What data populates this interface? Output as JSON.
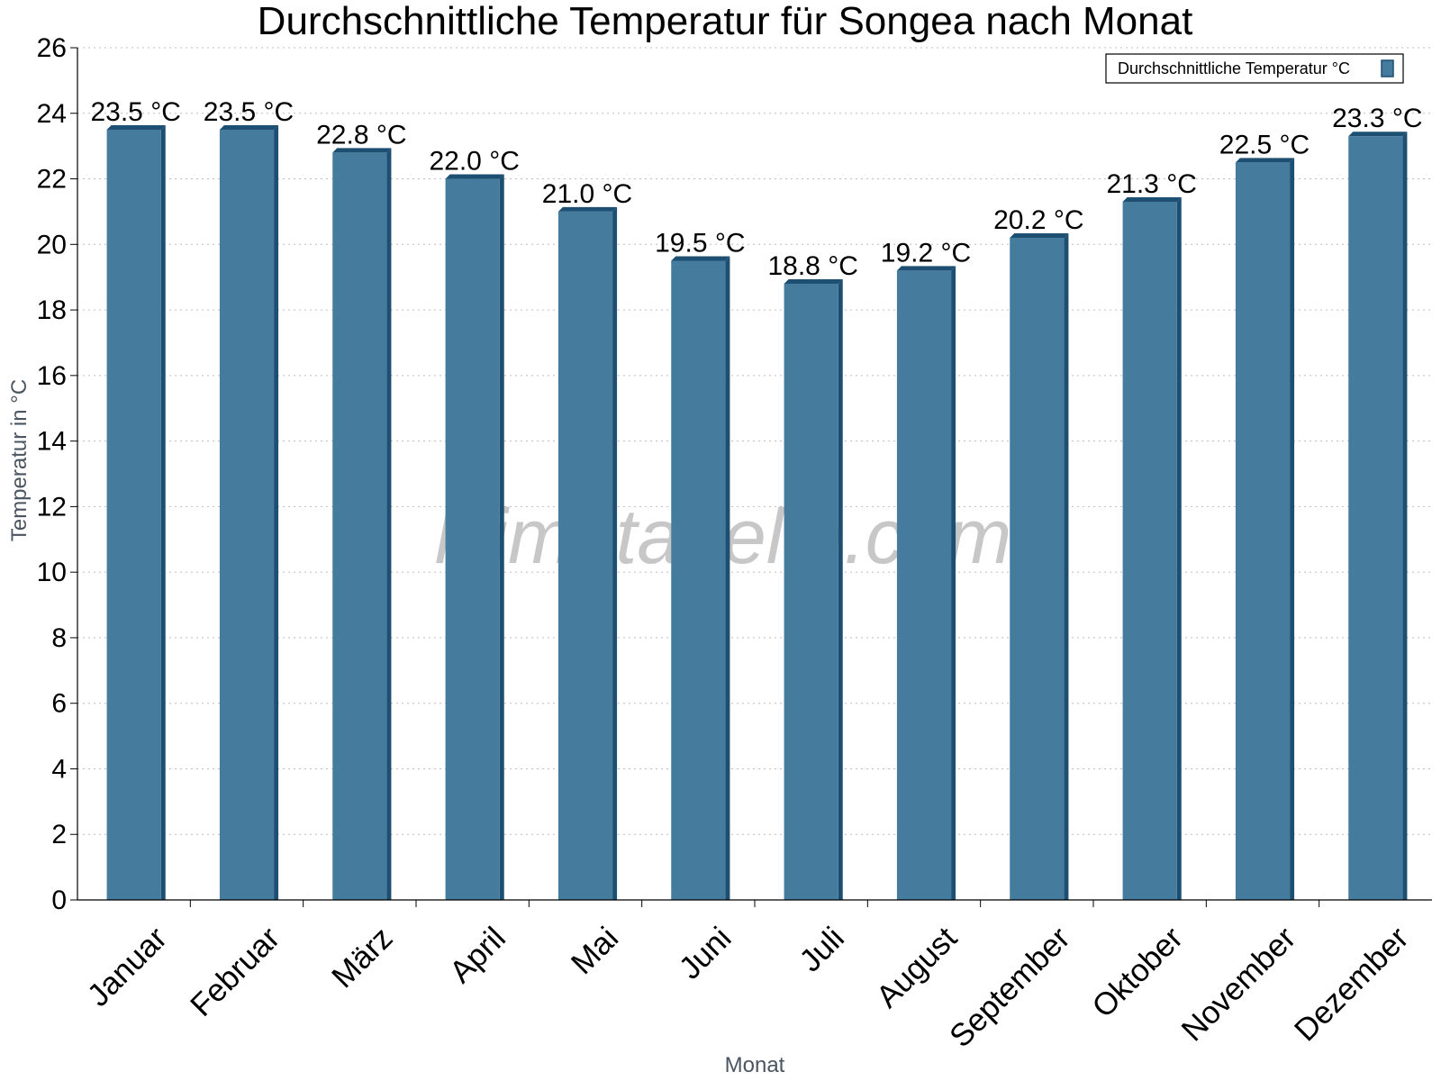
{
  "chart_data": {
    "type": "bar",
    "title": "Durchschnittliche Temperatur für Songea nach Monat",
    "xlabel": "Monat",
    "ylabel": "Temperatur in °C",
    "categories": [
      "Januar",
      "Februar",
      "März",
      "April",
      "Mai",
      "Juni",
      "Juli",
      "August",
      "September",
      "Oktober",
      "November",
      "Dezember"
    ],
    "series": [
      {
        "name": "Durchschnittliche Temperatur °C",
        "values": [
          23.5,
          23.5,
          22.8,
          22.0,
          21.0,
          19.5,
          18.8,
          19.2,
          20.2,
          21.3,
          22.5,
          23.3
        ],
        "labels": [
          "23.5 °C",
          "23.5 °C",
          "22.8 °C",
          "22.0 °C",
          "21.0 °C",
          "19.5 °C",
          "18.8 °C",
          "19.2 °C",
          "20.2 °C",
          "21.3 °C",
          "22.5 °C",
          "23.3 °C"
        ],
        "color": "#457b9d",
        "edge_color": "#1d4f72"
      }
    ],
    "ylim": [
      0,
      26
    ],
    "yticks": [
      "0",
      "2",
      "4",
      "6",
      "8",
      "10",
      "12",
      "14",
      "16",
      "18",
      "20",
      "22",
      "24",
      "26"
    ],
    "grid": true,
    "legend_position": "top-right"
  },
  "watermark": "klimatabelle.com"
}
